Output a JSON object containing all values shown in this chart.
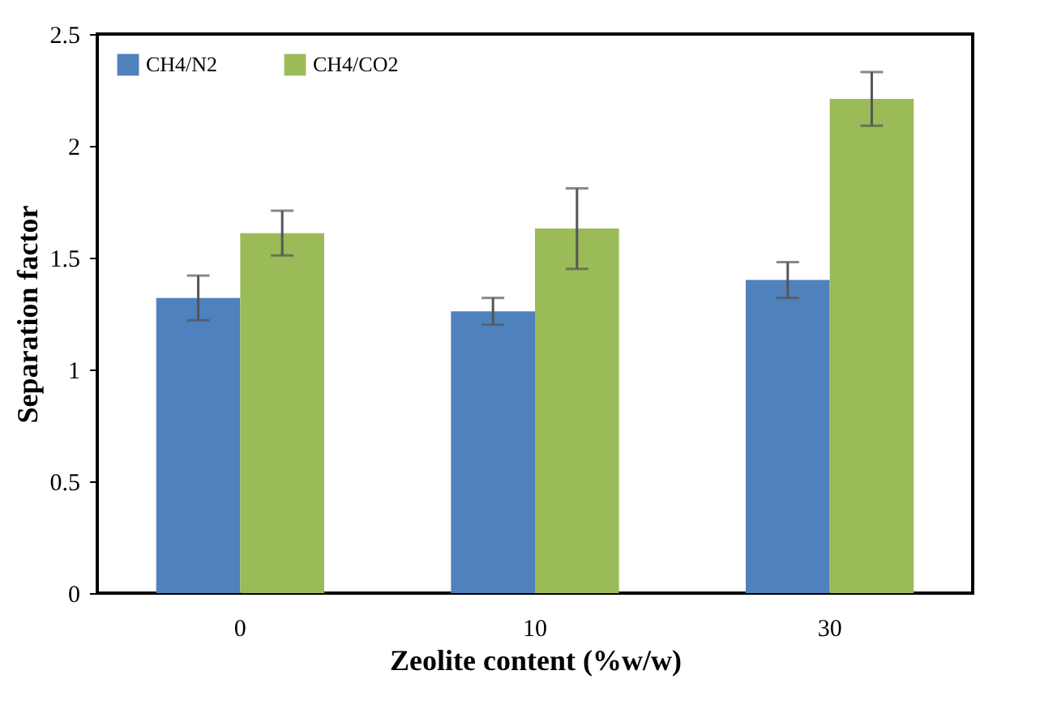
{
  "chart_data": {
    "type": "bar",
    "xlabel": "Zeolite content (%w/w)",
    "ylabel": "Separation factor",
    "categories": [
      "0",
      "10",
      "30"
    ],
    "series": [
      {
        "name": "CH4/N2",
        "color": "#4f81bd",
        "values": [
          1.32,
          1.26,
          1.4
        ],
        "errors": [
          0.1,
          0.06,
          0.08
        ]
      },
      {
        "name": "CH4/CO2",
        "color": "#9bbb59",
        "values": [
          1.61,
          1.63,
          2.21
        ],
        "errors": [
          0.1,
          0.18,
          0.12
        ]
      }
    ],
    "ylim": [
      0,
      2.5
    ],
    "yticks": [
      0,
      0.5,
      1,
      1.5,
      2,
      2.5
    ],
    "legend": "top left"
  }
}
